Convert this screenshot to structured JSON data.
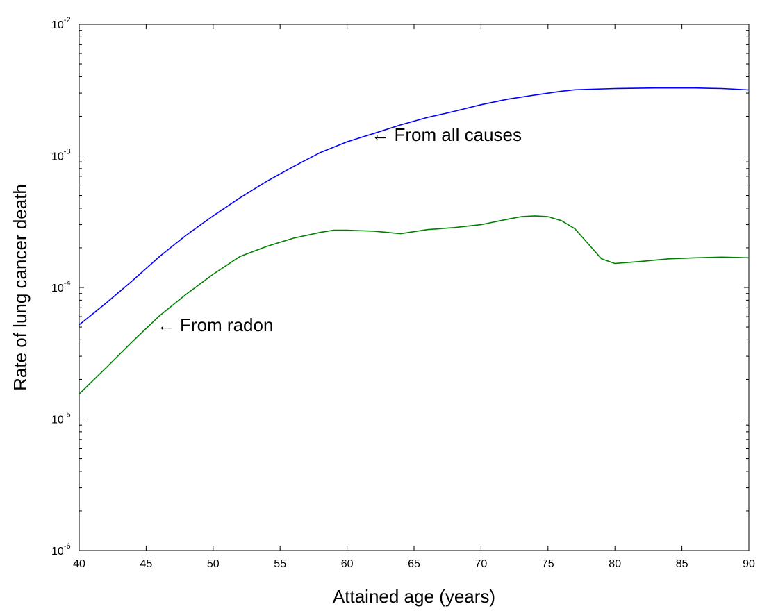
{
  "chart_data": {
    "type": "line",
    "title": "",
    "xlabel": "Attained age (years)",
    "ylabel": "Rate of lung cancer death",
    "xlim": [
      40,
      90
    ],
    "ylim": [
      1e-06,
      0.01
    ],
    "yscale": "log",
    "grid": false,
    "x_ticks": [
      40,
      45,
      50,
      55,
      60,
      65,
      70,
      75,
      80,
      85,
      90
    ],
    "x_tick_labels": [
      "40",
      "45",
      "50",
      "55",
      "60",
      "65",
      "70",
      "75",
      "80",
      "85",
      "90"
    ],
    "y_ticks": [
      {
        "value": 1e-06,
        "base": "10",
        "exp": "-6"
      },
      {
        "value": 1e-05,
        "base": "10",
        "exp": "-5"
      },
      {
        "value": 0.0001,
        "base": "10",
        "exp": "-4"
      },
      {
        "value": 0.001,
        "base": "10",
        "exp": "-3"
      },
      {
        "value": 0.01,
        "base": "10",
        "exp": "-2"
      }
    ],
    "annotations": [
      {
        "text": "← From all causes",
        "x": 61.8,
        "y": 0.00145
      },
      {
        "text": "← From radon",
        "x": 45.8,
        "y": 5.2e-05
      }
    ],
    "series": [
      {
        "color": "#0000ff",
        "x": [
          40,
          42,
          44,
          46,
          48,
          50,
          52,
          54,
          56,
          58,
          60,
          62,
          64,
          66,
          68,
          70,
          72,
          74,
          76,
          77,
          80,
          83,
          86,
          88,
          90
        ],
        "y": [
          5.2e-05,
          7.6e-05,
          0.000113,
          0.000172,
          0.00025,
          0.00035,
          0.00048,
          0.00064,
          0.00083,
          0.00106,
          0.00128,
          0.00148,
          0.00172,
          0.00196,
          0.00218,
          0.00245,
          0.0027,
          0.0029,
          0.0031,
          0.00318,
          0.00325,
          0.00328,
          0.00328,
          0.00325,
          0.00317
        ]
      },
      {
        "color": "#008000",
        "x": [
          40,
          42,
          44,
          46,
          48,
          50,
          52,
          54,
          56,
          58,
          59,
          60,
          62,
          64,
          66,
          68,
          70,
          72,
          73,
          74,
          75,
          76,
          77,
          78,
          79,
          80,
          82,
          84,
          86,
          88,
          90
        ],
        "y": [
          1.55e-05,
          2.45e-05,
          3.9e-05,
          6.1e-05,
          8.9e-05,
          0.000126,
          0.000172,
          0.000205,
          0.000237,
          0.000262,
          0.000272,
          0.000272,
          0.000268,
          0.000256,
          0.000275,
          0.000285,
          0.0003,
          0.00033,
          0.000345,
          0.00035,
          0.000345,
          0.000322,
          0.00028,
          0.000215,
          0.000165,
          0.000152,
          0.000158,
          0.000165,
          0.000168,
          0.00017,
          0.000168
        ]
      }
    ]
  }
}
